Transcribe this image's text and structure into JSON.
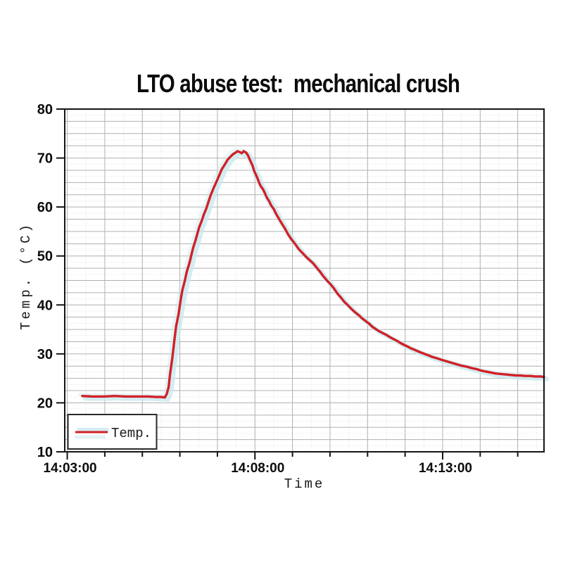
{
  "chart_data": {
    "type": "line",
    "title": "LTO abuse test:  mechanical crush",
    "xlabel": "Time",
    "ylabel": "Temp. (°C)",
    "ylim": [
      10,
      80
    ],
    "y_ticks": [
      {
        "label": "10",
        "value": 10
      },
      {
        "label": "20",
        "value": 20
      },
      {
        "label": "30",
        "value": 30
      },
      {
        "label": "40",
        "value": 40
      },
      {
        "label": "50",
        "value": 50
      },
      {
        "label": "60",
        "value": 60
      },
      {
        "label": "70",
        "value": 70
      },
      {
        "label": "80",
        "value": 80
      }
    ],
    "y_grid_step": 2.5,
    "y_dotted_grid_offset": 1.25,
    "x_unit": "seconds since 14:00:00",
    "x_range_seconds": [
      176,
      942
    ],
    "x_ticks": [
      {
        "label": "14:03:00",
        "seconds": 180
      },
      {
        "label": "14:08:00",
        "seconds": 480
      },
      {
        "label": "14:13:00",
        "seconds": 780
      }
    ],
    "x_minor_tick_step_seconds": 60,
    "x_dotted_grid_offset_seconds": 30,
    "grid": true,
    "legend": {
      "label": "Temp.",
      "position": "lower left"
    },
    "colors": {
      "line": "#d22027",
      "scan_artifact": "#c9e8ee",
      "grid_solid": "#b0b0b0",
      "grid_dotted": "#c9c9c9",
      "frame": "#141414"
    },
    "series": [
      {
        "name": "Temp.",
        "color": "#d22027",
        "points": [
          [
            204,
            21.4
          ],
          [
            220,
            21.3
          ],
          [
            238,
            21.3
          ],
          [
            256,
            21.4
          ],
          [
            274,
            21.3
          ],
          [
            292,
            21.3
          ],
          [
            310,
            21.3
          ],
          [
            322,
            21.2
          ],
          [
            330,
            21.2
          ],
          [
            336,
            21.1
          ],
          [
            339,
            21.8
          ],
          [
            342,
            23.2
          ],
          [
            344,
            25.6
          ],
          [
            348,
            29.2
          ],
          [
            351,
            32.6
          ],
          [
            354,
            35.6
          ],
          [
            358,
            38.2
          ],
          [
            361,
            40.8
          ],
          [
            364,
            43.0
          ],
          [
            368,
            45.0
          ],
          [
            371,
            46.8
          ],
          [
            375,
            48.4
          ],
          [
            378,
            50.0
          ],
          [
            381,
            51.6
          ],
          [
            385,
            53.2
          ],
          [
            388,
            54.6
          ],
          [
            391,
            55.9
          ],
          [
            395,
            57.2
          ],
          [
            398,
            58.4
          ],
          [
            402,
            59.6
          ],
          [
            405,
            60.8
          ],
          [
            409,
            62.3
          ],
          [
            414,
            63.9
          ],
          [
            419,
            65.3
          ],
          [
            423,
            66.5
          ],
          [
            427,
            67.7
          ],
          [
            432,
            68.7
          ],
          [
            436,
            69.6
          ],
          [
            441,
            70.3
          ],
          [
            445,
            70.8
          ],
          [
            449,
            71.1
          ],
          [
            452,
            71.4
          ],
          [
            456,
            71.2
          ],
          [
            459,
            71.0
          ],
          [
            462,
            71.4
          ],
          [
            466,
            71.1
          ],
          [
            469,
            70.5
          ],
          [
            472,
            69.6
          ],
          [
            476,
            68.5
          ],
          [
            479,
            67.3
          ],
          [
            483,
            66.2
          ],
          [
            486,
            65.2
          ],
          [
            489,
            64.3
          ],
          [
            493,
            63.6
          ],
          [
            496,
            62.8
          ],
          [
            499,
            61.9
          ],
          [
            503,
            61.1
          ],
          [
            506,
            60.3
          ],
          [
            510,
            59.6
          ],
          [
            513,
            58.8
          ],
          [
            516,
            58.1
          ],
          [
            522,
            56.8
          ],
          [
            528,
            55.6
          ],
          [
            533,
            54.4
          ],
          [
            539,
            53.3
          ],
          [
            545,
            52.3
          ],
          [
            550,
            51.4
          ],
          [
            556,
            50.6
          ],
          [
            561,
            49.9
          ],
          [
            567,
            49.2
          ],
          [
            573,
            48.5
          ],
          [
            578,
            47.7
          ],
          [
            584,
            46.8
          ],
          [
            589,
            45.9
          ],
          [
            595,
            45.0
          ],
          [
            601,
            44.2
          ],
          [
            606,
            43.4
          ],
          [
            612,
            42.3
          ],
          [
            618,
            41.4
          ],
          [
            623,
            40.6
          ],
          [
            629,
            39.9
          ],
          [
            634,
            39.2
          ],
          [
            640,
            38.5
          ],
          [
            646,
            37.9
          ],
          [
            651,
            37.3
          ],
          [
            657,
            36.7
          ],
          [
            663,
            36.1
          ],
          [
            668,
            35.5
          ],
          [
            674,
            35.0
          ],
          [
            679,
            34.6
          ],
          [
            685,
            34.2
          ],
          [
            691,
            33.8
          ],
          [
            696,
            33.4
          ],
          [
            702,
            33.0
          ],
          [
            708,
            32.6
          ],
          [
            713,
            32.2
          ],
          [
            719,
            31.8
          ],
          [
            724,
            31.5
          ],
          [
            730,
            31.1
          ],
          [
            736,
            30.8
          ],
          [
            741,
            30.5
          ],
          [
            747,
            30.2
          ],
          [
            755,
            29.8
          ],
          [
            763,
            29.4
          ],
          [
            771,
            29.1
          ],
          [
            778,
            28.8
          ],
          [
            786,
            28.5
          ],
          [
            794,
            28.2
          ],
          [
            802,
            27.9
          ],
          [
            810,
            27.6
          ],
          [
            818,
            27.4
          ],
          [
            826,
            27.1
          ],
          [
            834,
            26.9
          ],
          [
            841,
            26.6
          ],
          [
            849,
            26.4
          ],
          [
            857,
            26.2
          ],
          [
            865,
            26.0
          ],
          [
            873,
            25.9
          ],
          [
            881,
            25.8
          ],
          [
            889,
            25.7
          ],
          [
            897,
            25.6
          ],
          [
            904,
            25.6
          ],
          [
            912,
            25.5
          ],
          [
            920,
            25.5
          ],
          [
            928,
            25.4
          ],
          [
            936,
            25.4
          ],
          [
            942,
            25.3
          ]
        ]
      }
    ]
  }
}
